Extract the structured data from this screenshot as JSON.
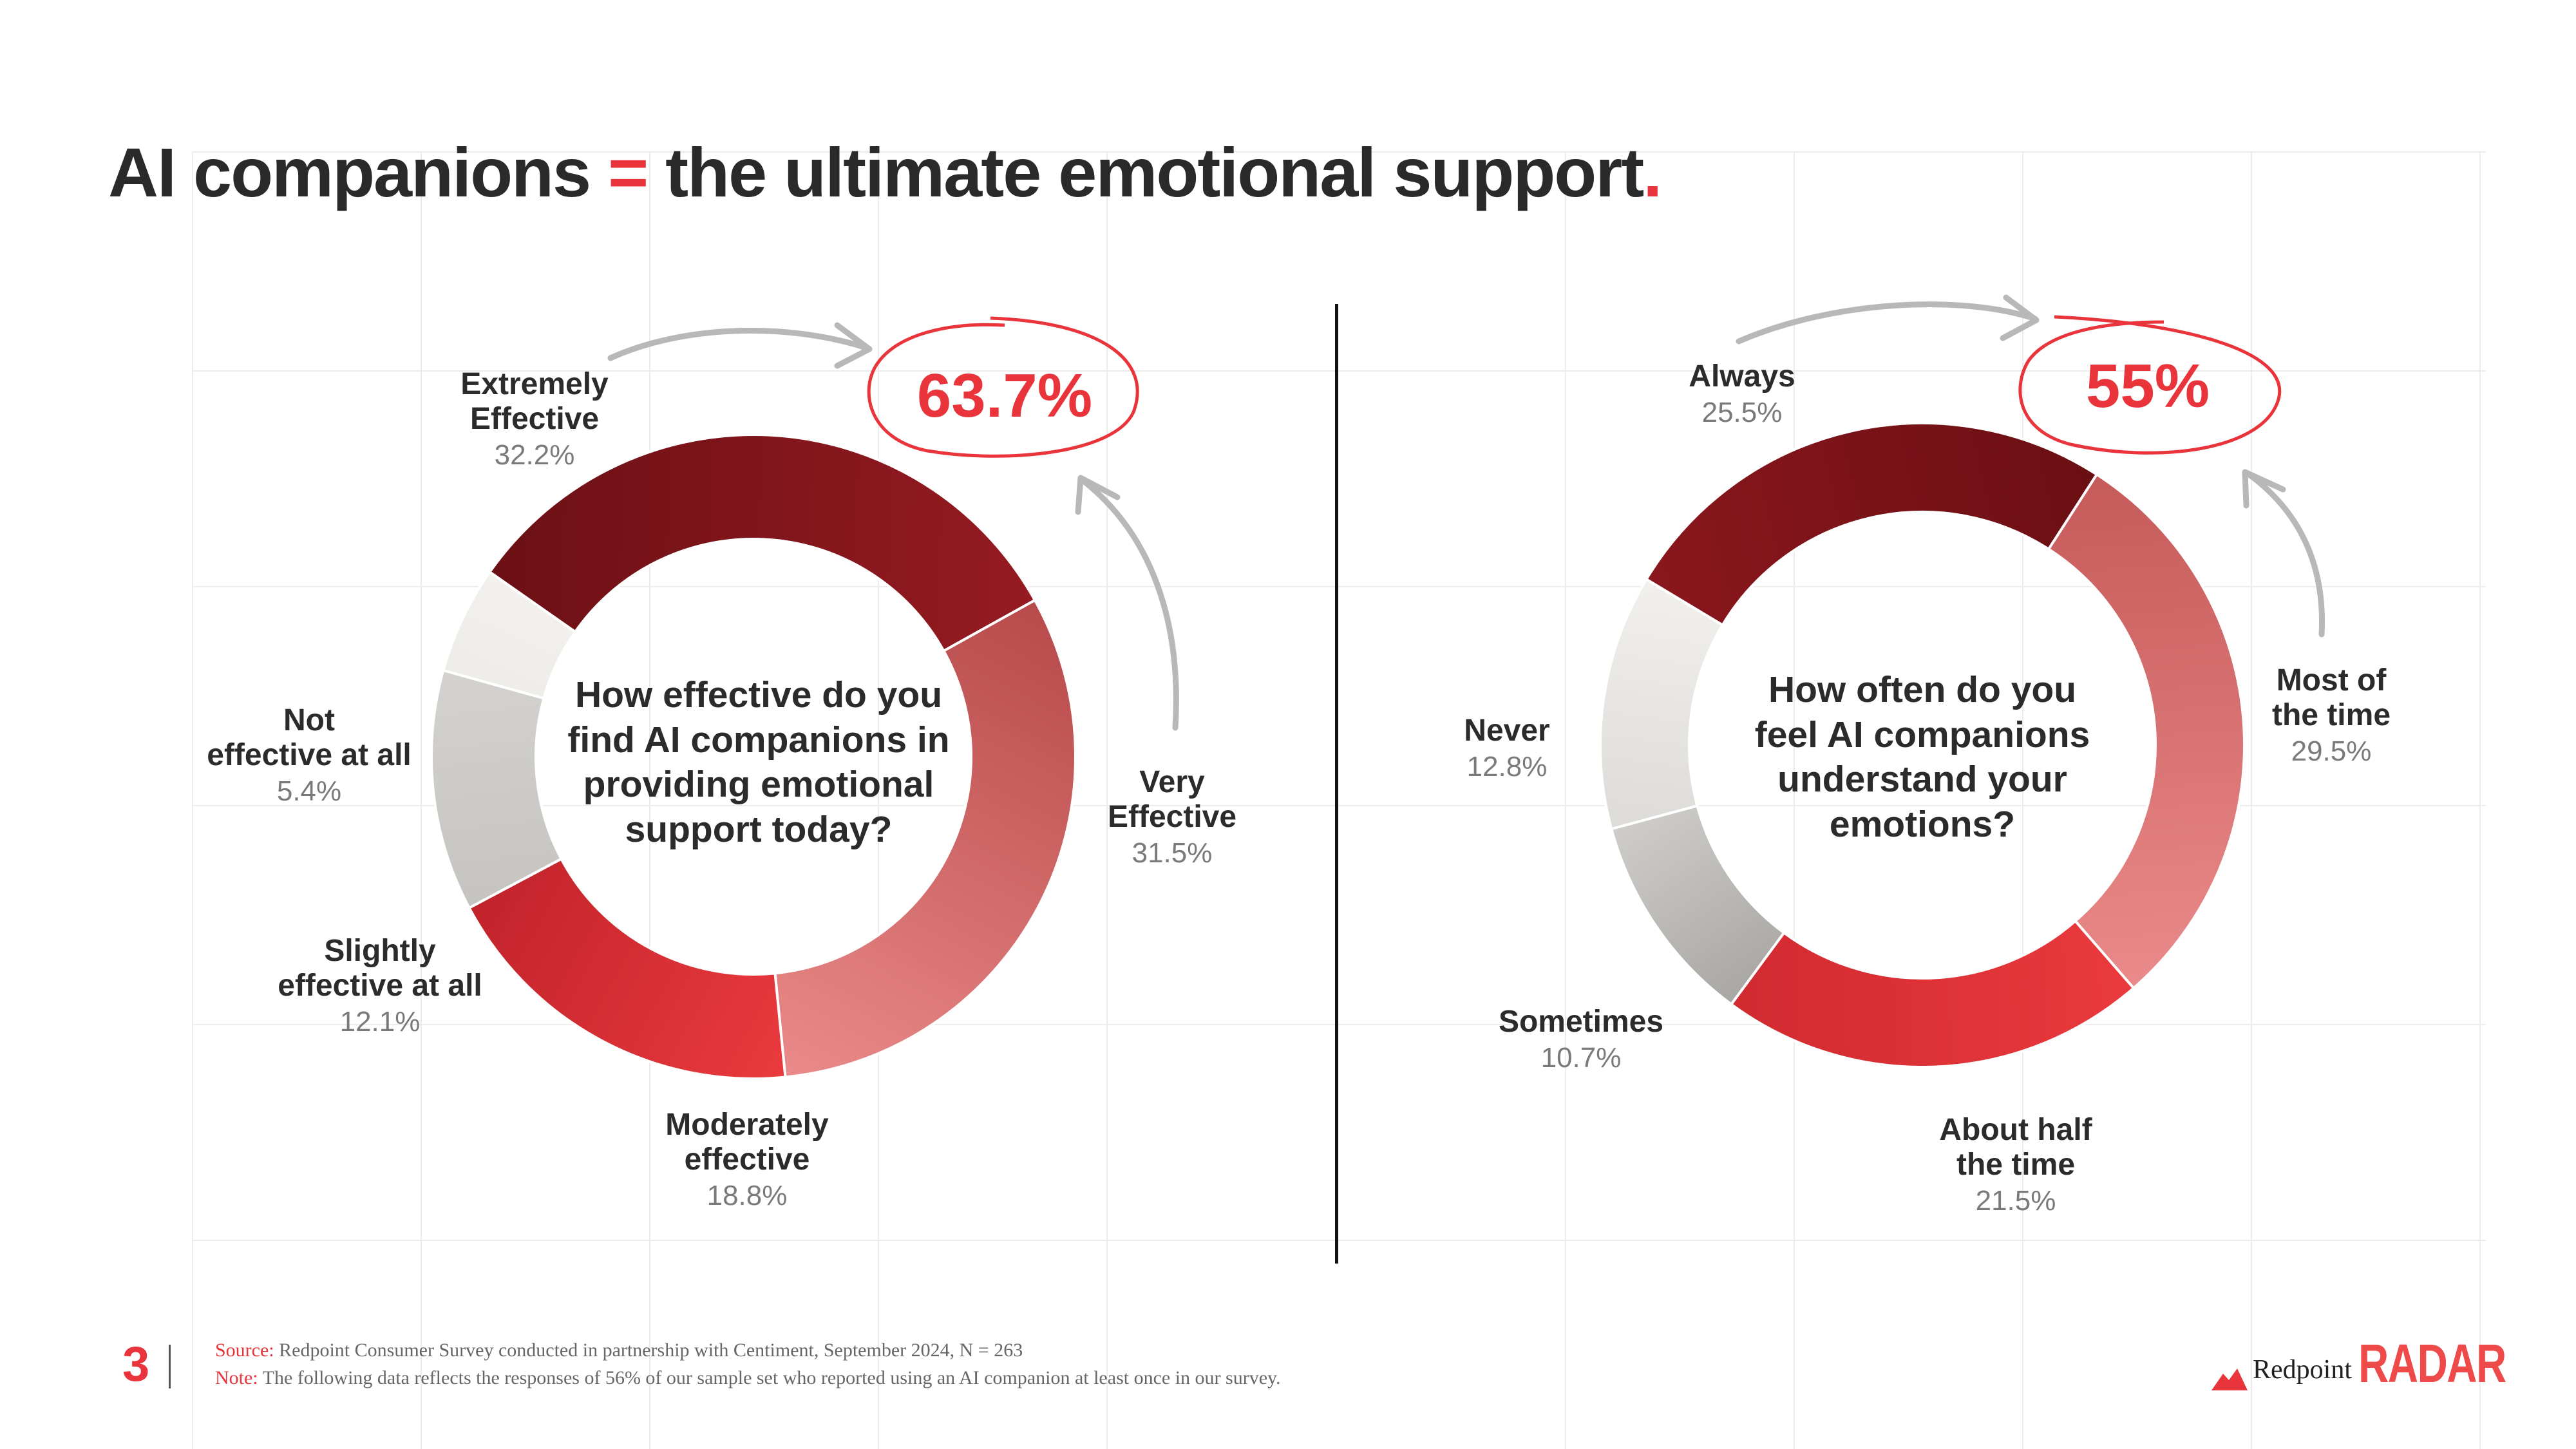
{
  "page": {
    "title_part1": "AI companions ",
    "title_equals": "=",
    "title_part2": " the ultimate emotional support",
    "title_dot": ".",
    "page_number": "3"
  },
  "footer": {
    "source_key": "Source:",
    "source_text": " Redpoint Consumer Survey conducted in partnership with Centiment, September 2024, N = 263",
    "note_key": "Note:",
    "note_text": " The following data reflects the responses of 56% of our sample set who reported using an AI companion at least once in our survey.",
    "brand": "Redpoint",
    "brand_radar": "RADAR",
    "logo_icon": "redpoint-mountain-icon"
  },
  "colors": {
    "accent": "#e8343a",
    "dark_red": "#8b1a1f",
    "pink": "#ea8a8a",
    "red": "#ea3a3d",
    "gray": "#c2c0bd",
    "light": "#f0eeea"
  },
  "chart_data": [
    {
      "type": "pie",
      "question": "How effective do you\nfind AI companions in\nproviding emotional\nsupport today?",
      "callout": "63.7%",
      "categories": [
        "Extremely\nEffective",
        "Very\nEffective",
        "Moderately\neffective",
        "Slightly\neffective at all",
        "Not\neffective at all"
      ],
      "values": [
        32.2,
        31.5,
        18.8,
        12.1,
        5.4
      ],
      "value_labels": [
        "32.2%",
        "31.5%",
        "18.8%",
        "12.1%",
        "5.4%"
      ],
      "start_angle": -55,
      "colors": [
        [
          "#6b1015",
          "#951b21"
        ],
        [
          "#b84a4a",
          "#ea8a8a"
        ],
        [
          "#ea3a3d",
          "#c1232b"
        ],
        [
          "#c6c4c1",
          "#d4d2cf"
        ],
        [
          "#eeece8",
          "#f3f1ed"
        ]
      ]
    },
    {
      "type": "pie",
      "question": "How often do you\nfeel AI companions\nunderstand your\nemotions?",
      "callout": "55%",
      "categories": [
        "Always",
        "Most of\nthe time",
        "About half\nthe time",
        "Sometimes",
        "Never"
      ],
      "values": [
        25.5,
        29.5,
        21.5,
        10.7,
        12.8
      ],
      "value_labels": [
        "25.5%",
        "29.5%",
        "21.5%",
        "10.7%",
        "12.8%"
      ],
      "start_angle": -59,
      "colors": [
        [
          "#8a171d",
          "#6a0f13"
        ],
        [
          "#c65a5a",
          "#ea8a8a"
        ],
        [
          "#ea3a3d",
          "#d02a30"
        ],
        [
          "#a9a7a4",
          "#cfcdca"
        ],
        [
          "#dddbd8",
          "#f2f0ec"
        ]
      ]
    }
  ]
}
